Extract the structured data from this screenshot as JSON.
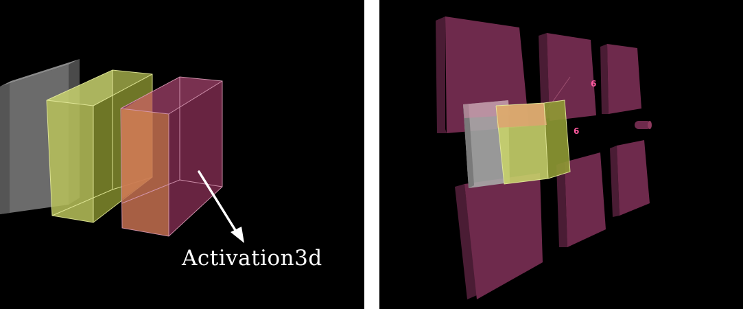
{
  "left": {
    "annotation": "Activation3d"
  },
  "right": {
    "dim_labels": [
      "6",
      "6"
    ]
  },
  "colors": {
    "background": "#000000",
    "gray_layer": "#6b6b6b",
    "yellow_layer": "#c8d36a",
    "pink_layer": "#8a3358",
    "arrow": "#ffffff"
  }
}
